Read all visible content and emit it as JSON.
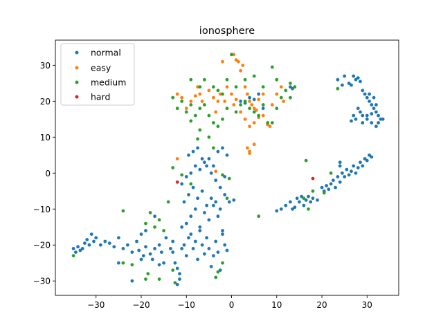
{
  "chart_data": {
    "type": "scatter",
    "title": "ionosphere",
    "xlabel": "",
    "ylabel": "",
    "xlim": [
      -39,
      37
    ],
    "ylim": [
      -34,
      37
    ],
    "xticks": [
      -30,
      -20,
      -10,
      0,
      10,
      20,
      30
    ],
    "yticks": [
      -30,
      -20,
      -10,
      0,
      10,
      20,
      30
    ],
    "grid": false,
    "legend_position": "upper-left",
    "series": [
      {
        "name": "normal",
        "color": "#1f77b4",
        "points": [
          [
            -35,
            -21
          ],
          [
            -34.5,
            -22
          ],
          [
            -34,
            -20.5
          ],
          [
            -33.5,
            -21.5
          ],
          [
            -33,
            -21
          ],
          [
            -32.5,
            -19.5
          ],
          [
            -32,
            -18.5
          ],
          [
            -31.5,
            -20
          ],
          [
            -31,
            -17
          ],
          [
            -30.5,
            -19
          ],
          [
            -30,
            -18
          ],
          [
            -29,
            -20
          ],
          [
            -28,
            -19
          ],
          [
            -27,
            -19.5
          ],
          [
            -26,
            -20.5
          ],
          [
            -25,
            -18
          ],
          [
            -24,
            -21
          ],
          [
            -23,
            -20
          ],
          [
            -22,
            -22
          ],
          [
            -21,
            -19
          ],
          [
            -20.5,
            -21.5
          ],
          [
            -20,
            -24
          ],
          [
            -19.5,
            -23
          ],
          [
            -19,
            -20.5
          ],
          [
            -18,
            -22.5
          ],
          [
            -17.5,
            -24
          ],
          [
            -17,
            -21
          ],
          [
            -16,
            -20
          ],
          [
            -15.5,
            -22
          ],
          [
            -15,
            -25
          ],
          [
            -14.5,
            -18
          ],
          [
            -13.5,
            -21
          ],
          [
            -13,
            -22
          ],
          [
            -12.5,
            -25
          ],
          [
            -12,
            -26.5
          ],
          [
            -11.5,
            -28
          ],
          [
            -11,
            -21
          ],
          [
            -10.5,
            -20
          ],
          [
            -10,
            -23
          ],
          [
            -9.5,
            -18
          ],
          [
            -9,
            -17
          ],
          [
            -8.5,
            -21
          ],
          [
            -8,
            -19
          ],
          [
            -7.5,
            -24
          ],
          [
            -7,
            -16
          ],
          [
            -6.5,
            -20
          ],
          [
            -6,
            -22.5
          ],
          [
            -5.5,
            -18
          ],
          [
            -5,
            -21
          ],
          [
            -4.5,
            -26
          ],
          [
            -4,
            -23
          ],
          [
            -3.5,
            -19
          ],
          [
            -3,
            -22
          ],
          [
            -2.5,
            -27
          ],
          [
            -2,
            -17
          ],
          [
            -1.5,
            -20
          ],
          [
            -1,
            -21.5
          ],
          [
            -10,
            -14
          ],
          [
            -9,
            -12
          ],
          [
            -8,
            -10
          ],
          [
            -7,
            -15
          ],
          [
            -6,
            -11
          ],
          [
            -5,
            -13
          ],
          [
            -4,
            -9
          ],
          [
            -3,
            -12
          ],
          [
            -2,
            -16
          ],
          [
            -11,
            -15
          ],
          [
            -10.5,
            -8
          ],
          [
            -9.5,
            -6
          ],
          [
            -8.5,
            -4
          ],
          [
            -7.5,
            -7
          ],
          [
            -6.5,
            -5
          ],
          [
            -5.5,
            -9
          ],
          [
            -4.5,
            -7
          ],
          [
            -3.5,
            -8
          ],
          [
            -2.5,
            -10
          ],
          [
            -1.5,
            -6
          ],
          [
            -0.5,
            -8
          ],
          [
            0.5,
            -7.5
          ],
          [
            -11,
            -3
          ],
          [
            -10,
            -1
          ],
          [
            -9,
            0
          ],
          [
            -8,
            2
          ],
          [
            -7,
            1
          ],
          [
            -6,
            3
          ],
          [
            -5,
            4
          ],
          [
            -4,
            2
          ],
          [
            -3,
            6
          ],
          [
            -2,
            7
          ],
          [
            -1,
            5
          ],
          [
            -9.5,
            5
          ],
          [
            -8.5,
            6
          ],
          [
            -7.5,
            7
          ],
          [
            -6.5,
            4
          ],
          [
            -5.5,
            2
          ],
          [
            -4.5,
            0
          ],
          [
            -3.5,
            -2
          ],
          [
            -2.5,
            -4
          ],
          [
            -1.5,
            -1
          ],
          [
            -12,
            -31
          ],
          [
            -11.5,
            -29.5
          ],
          [
            -22,
            -30
          ],
          [
            -25,
            -25
          ],
          [
            -16,
            -25.5
          ],
          [
            -13,
            -19
          ],
          [
            -20,
            -17
          ],
          [
            -19,
            -16
          ],
          [
            -17,
            -12
          ],
          [
            10,
            -10.5
          ],
          [
            11,
            -10
          ],
          [
            12,
            -9
          ],
          [
            13,
            -8
          ],
          [
            13.5,
            -10
          ],
          [
            14,
            -9.5
          ],
          [
            14.5,
            -7
          ],
          [
            15,
            -8
          ],
          [
            15.5,
            -6.5
          ],
          [
            16,
            -9
          ],
          [
            16.5,
            -7.5
          ],
          [
            17,
            -6.5
          ],
          [
            17.5,
            -8
          ],
          [
            18,
            -7
          ],
          [
            19,
            -7.5
          ],
          [
            20,
            -4
          ],
          [
            20.5,
            -5
          ],
          [
            21,
            -3.5
          ],
          [
            21.5,
            -4.5
          ],
          [
            22,
            -3
          ],
          [
            22.5,
            -2
          ],
          [
            23,
            -4
          ],
          [
            23.5,
            -1
          ],
          [
            24,
            -2.5
          ],
          [
            24.5,
            0
          ],
          [
            25,
            -1
          ],
          [
            25.5,
            1
          ],
          [
            26,
            -0.5
          ],
          [
            26.5,
            0.5
          ],
          [
            27,
            2
          ],
          [
            27.5,
            0
          ],
          [
            28,
            1.5
          ],
          [
            28.5,
            3
          ],
          [
            29,
            2
          ],
          [
            29.5,
            4
          ],
          [
            30,
            3.5
          ],
          [
            30.5,
            5
          ],
          [
            31,
            4.5
          ],
          [
            24,
            3
          ],
          [
            24,
            2
          ],
          [
            23.5,
            26
          ],
          [
            24.5,
            24.5
          ],
          [
            25,
            27
          ],
          [
            26,
            25
          ],
          [
            27,
            27
          ],
          [
            27.5,
            26
          ],
          [
            28,
            26.5
          ],
          [
            28.5,
            25.5
          ],
          [
            26.5,
            24.5
          ],
          [
            29,
            23
          ],
          [
            29.5,
            22
          ],
          [
            30,
            21
          ],
          [
            30.5,
            20
          ],
          [
            31,
            19
          ],
          [
            31.5,
            18
          ],
          [
            32,
            17
          ],
          [
            32.5,
            16
          ],
          [
            33,
            15
          ],
          [
            33.5,
            15
          ],
          [
            32.5,
            14
          ],
          [
            32,
            13
          ],
          [
            31,
            14
          ],
          [
            30,
            15
          ],
          [
            29,
            16
          ],
          [
            28.5,
            17
          ],
          [
            28,
            18
          ],
          [
            27.5,
            15
          ],
          [
            27,
            16
          ],
          [
            26.5,
            14.5
          ],
          [
            29,
            14
          ],
          [
            30,
            16
          ],
          [
            31,
            16.5
          ],
          [
            32,
            19
          ],
          [
            31.5,
            21
          ],
          [
            30.5,
            22
          ],
          [
            2,
            20
          ],
          [
            3,
            19.5
          ],
          [
            4,
            21
          ],
          [
            5,
            20.5
          ],
          [
            6,
            22
          ],
          [
            7,
            18
          ],
          [
            13,
            24
          ],
          [
            13.5,
            23.5
          ]
        ]
      },
      {
        "name": "easy",
        "color": "#ff7f0e",
        "points": [
          [
            -2,
            31
          ],
          [
            0.5,
            33
          ],
          [
            1,
            31.5
          ],
          [
            1.5,
            31
          ],
          [
            2,
            28.5
          ],
          [
            2.5,
            30
          ],
          [
            3,
            24
          ],
          [
            3.5,
            22
          ],
          [
            4,
            20
          ],
          [
            4.5,
            19
          ],
          [
            5,
            18
          ],
          [
            5.5,
            17.5
          ],
          [
            6,
            20.5
          ],
          [
            7,
            22
          ],
          [
            8,
            13.5
          ],
          [
            8.5,
            13
          ],
          [
            9,
            19
          ],
          [
            10,
            22
          ],
          [
            11,
            24
          ],
          [
            11.5,
            20
          ],
          [
            -2.5,
            22
          ],
          [
            -3,
            20
          ],
          [
            -3.5,
            17
          ],
          [
            -4,
            21
          ],
          [
            -5,
            23
          ],
          [
            -6.5,
            20
          ],
          [
            -7,
            22
          ],
          [
            -7.5,
            24
          ],
          [
            -8,
            21.5
          ],
          [
            -9,
            20
          ],
          [
            -10,
            18
          ],
          [
            -11,
            21
          ],
          [
            -12,
            22
          ],
          [
            -1,
            24
          ],
          [
            0,
            22
          ],
          [
            1,
            20.5
          ],
          [
            2,
            17
          ],
          [
            3,
            15
          ],
          [
            4,
            13
          ],
          [
            5,
            14
          ],
          [
            6,
            15.5
          ],
          [
            7,
            16
          ],
          [
            3.5,
            7
          ],
          [
            4,
            6
          ],
          [
            4,
            5.5
          ],
          [
            5,
            8
          ],
          [
            -12,
            4
          ],
          [
            -3.5,
            0.5
          ],
          [
            -1.5,
            20
          ],
          [
            0.5,
            19
          ]
        ]
      },
      {
        "name": "medium",
        "color": "#2ca02c",
        "points": [
          [
            0,
            33
          ],
          [
            -9,
            26
          ],
          [
            -7,
            24
          ],
          [
            -6,
            26
          ],
          [
            -4,
            24
          ],
          [
            -3,
            23
          ],
          [
            -2,
            22
          ],
          [
            -1,
            26
          ],
          [
            1,
            24
          ],
          [
            3,
            26
          ],
          [
            5,
            27
          ],
          [
            7,
            24
          ],
          [
            9,
            29.5
          ],
          [
            10,
            26
          ],
          [
            11,
            21
          ],
          [
            12,
            23
          ],
          [
            13,
            25
          ],
          [
            -13,
            21
          ],
          [
            -12,
            18
          ],
          [
            -11,
            20
          ],
          [
            -10,
            17
          ],
          [
            -9,
            19
          ],
          [
            -8,
            16
          ],
          [
            -7,
            18
          ],
          [
            -6,
            19
          ],
          [
            -5,
            16
          ],
          [
            -4,
            14
          ],
          [
            -3,
            13
          ],
          [
            -2,
            15
          ],
          [
            -1,
            18
          ],
          [
            1,
            17
          ],
          [
            2,
            19
          ],
          [
            3,
            20
          ],
          [
            4,
            18
          ],
          [
            5,
            17
          ],
          [
            6,
            16
          ],
          [
            7,
            19
          ],
          [
            8,
            14
          ],
          [
            9,
            14
          ],
          [
            10,
            18
          ],
          [
            13,
            21
          ],
          [
            14,
            24
          ],
          [
            -7,
            12
          ],
          [
            -9,
            14.5
          ],
          [
            -7.5,
            9.5
          ],
          [
            -5,
            10
          ],
          [
            -4,
            7
          ],
          [
            -13,
            1.5
          ],
          [
            -11,
            -0.5
          ],
          [
            -9,
            -3
          ],
          [
            -2,
            -0.5
          ],
          [
            -0.5,
            -1.5
          ],
          [
            -14,
            -8
          ],
          [
            -16,
            -13
          ],
          [
            -18,
            -11
          ],
          [
            -19,
            -14
          ],
          [
            -17,
            -15
          ],
          [
            -15,
            -16
          ],
          [
            -24,
            -10.5
          ],
          [
            -22,
            -25.5
          ],
          [
            -24,
            -25
          ],
          [
            -19,
            -29.5
          ],
          [
            -18.5,
            -28
          ],
          [
            -16,
            -29.5
          ],
          [
            -13,
            -27
          ],
          [
            -12.5,
            -30.5
          ],
          [
            -3.5,
            -29
          ],
          [
            -3,
            -27.5
          ],
          [
            -2,
            -25
          ],
          [
            -1,
            -7
          ],
          [
            6,
            -12
          ],
          [
            16.5,
            3.5
          ],
          [
            16,
            -7
          ],
          [
            17,
            -10
          ],
          [
            18,
            -5
          ],
          [
            20.5,
            -5.5
          ],
          [
            22,
            0
          ],
          [
            23.5,
            23.5
          ],
          [
            -35,
            -23
          ]
        ]
      },
      {
        "name": "hard",
        "color": "#d62728",
        "points": [
          [
            -12,
            -2.5
          ],
          [
            18,
            -1.5
          ]
        ]
      }
    ]
  }
}
